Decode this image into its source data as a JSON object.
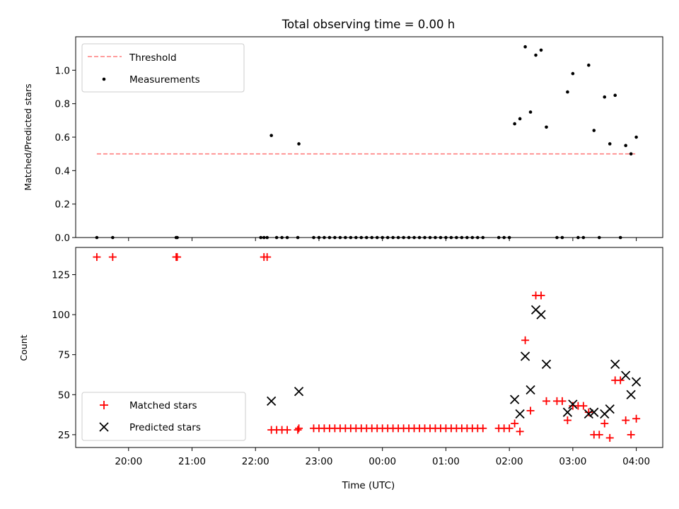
{
  "figure": {
    "title": "Total observing time = 0.00 h",
    "xlabel": "Time (UTC)"
  },
  "chart_data": [
    {
      "type": "scatter",
      "ylabel": "Matched/Predicted stars",
      "ylim": [
        0,
        1.2
      ],
      "yticks": [
        0.0,
        0.2,
        0.4,
        0.6,
        0.8,
        1.0
      ],
      "xlim": [
        "19:10",
        "04:25"
      ],
      "xticks": [
        "20:00",
        "21:00",
        "22:00",
        "23:00",
        "00:00",
        "01:00",
        "02:00",
        "03:00",
        "04:00"
      ],
      "legend_position": "upper-left",
      "threshold": {
        "name": "Threshold",
        "color": "#ff7f7f",
        "value": 0.5,
        "x_start": "19:30",
        "x_end": "03:59"
      },
      "series": [
        {
          "name": "Measurements",
          "color": "#000000",
          "marker": "dot",
          "points": [
            [
              "19:30",
              0
            ],
            [
              "19:45",
              0
            ],
            [
              "20:45",
              0
            ],
            [
              "20:46",
              0
            ],
            [
              "22:05",
              0
            ],
            [
              "22:08",
              0
            ],
            [
              "22:11",
              0
            ],
            [
              "22:15",
              0.61
            ],
            [
              "22:20",
              0
            ],
            [
              "22:25",
              0
            ],
            [
              "22:30",
              0
            ],
            [
              "22:40",
              0
            ],
            [
              "22:41",
              0.56
            ],
            [
              "22:55",
              0
            ],
            [
              "23:00",
              0
            ],
            [
              "23:05",
              0
            ],
            [
              "23:10",
              0
            ],
            [
              "23:15",
              0
            ],
            [
              "23:20",
              0
            ],
            [
              "23:25",
              0
            ],
            [
              "23:30",
              0
            ],
            [
              "23:35",
              0
            ],
            [
              "23:40",
              0
            ],
            [
              "23:45",
              0
            ],
            [
              "23:50",
              0
            ],
            [
              "23:55",
              0
            ],
            [
              "00:00",
              0
            ],
            [
              "00:05",
              0
            ],
            [
              "00:10",
              0
            ],
            [
              "00:15",
              0
            ],
            [
              "00:20",
              0
            ],
            [
              "00:25",
              0
            ],
            [
              "00:30",
              0
            ],
            [
              "00:35",
              0
            ],
            [
              "00:40",
              0
            ],
            [
              "00:45",
              0
            ],
            [
              "00:50",
              0
            ],
            [
              "00:55",
              0
            ],
            [
              "01:00",
              0
            ],
            [
              "01:05",
              0
            ],
            [
              "01:10",
              0
            ],
            [
              "01:15",
              0
            ],
            [
              "01:20",
              0
            ],
            [
              "01:25",
              0
            ],
            [
              "01:30",
              0
            ],
            [
              "01:35",
              0
            ],
            [
              "01:50",
              0
            ],
            [
              "01:55",
              0
            ],
            [
              "02:00",
              0
            ],
            [
              "02:05",
              0.68
            ],
            [
              "02:10",
              0.71
            ],
            [
              "02:15",
              1.14
            ],
            [
              "02:20",
              0.75
            ],
            [
              "02:25",
              1.09
            ],
            [
              "02:30",
              1.12
            ],
            [
              "02:35",
              0.66
            ],
            [
              "02:45",
              0
            ],
            [
              "02:50",
              0
            ],
            [
              "02:55",
              0.87
            ],
            [
              "03:00",
              0.98
            ],
            [
              "03:05",
              0
            ],
            [
              "03:10",
              0
            ],
            [
              "03:15",
              1.03
            ],
            [
              "03:20",
              0.64
            ],
            [
              "03:25",
              0
            ],
            [
              "03:30",
              0.84
            ],
            [
              "03:35",
              0.56
            ],
            [
              "03:40",
              0.85
            ],
            [
              "03:45",
              0
            ],
            [
              "03:50",
              0.55
            ],
            [
              "03:55",
              0.5
            ],
            [
              "04:00",
              0.6
            ]
          ]
        }
      ]
    },
    {
      "type": "scatter",
      "ylabel": "Count",
      "ylim": [
        17,
        142
      ],
      "yticks": [
        25,
        50,
        75,
        100,
        125
      ],
      "xlim": [
        "19:10",
        "04:25"
      ],
      "xticks": [
        "20:00",
        "21:00",
        "22:00",
        "23:00",
        "00:00",
        "01:00",
        "02:00",
        "03:00",
        "04:00"
      ],
      "legend_position": "lower-left",
      "series": [
        {
          "name": "Matched stars",
          "color": "#ff0000",
          "marker": "plus",
          "points": [
            [
              "19:30",
              136
            ],
            [
              "19:45",
              136
            ],
            [
              "20:45",
              136
            ],
            [
              "20:46",
              136
            ],
            [
              "22:08",
              136
            ],
            [
              "22:11",
              136
            ],
            [
              "22:15",
              28
            ],
            [
              "22:20",
              28
            ],
            [
              "22:25",
              28
            ],
            [
              "22:30",
              28
            ],
            [
              "22:40",
              28
            ],
            [
              "22:41",
              29
            ],
            [
              "22:55",
              29
            ],
            [
              "23:00",
              29
            ],
            [
              "23:05",
              29
            ],
            [
              "23:10",
              29
            ],
            [
              "23:15",
              29
            ],
            [
              "23:20",
              29
            ],
            [
              "23:25",
              29
            ],
            [
              "23:30",
              29
            ],
            [
              "23:35",
              29
            ],
            [
              "23:40",
              29
            ],
            [
              "23:45",
              29
            ],
            [
              "23:50",
              29
            ],
            [
              "23:55",
              29
            ],
            [
              "00:00",
              29
            ],
            [
              "00:05",
              29
            ],
            [
              "00:10",
              29
            ],
            [
              "00:15",
              29
            ],
            [
              "00:20",
              29
            ],
            [
              "00:25",
              29
            ],
            [
              "00:30",
              29
            ],
            [
              "00:35",
              29
            ],
            [
              "00:40",
              29
            ],
            [
              "00:45",
              29
            ],
            [
              "00:50",
              29
            ],
            [
              "00:55",
              29
            ],
            [
              "01:00",
              29
            ],
            [
              "01:05",
              29
            ],
            [
              "01:10",
              29
            ],
            [
              "01:15",
              29
            ],
            [
              "01:20",
              29
            ],
            [
              "01:25",
              29
            ],
            [
              "01:30",
              29
            ],
            [
              "01:35",
              29
            ],
            [
              "01:50",
              29
            ],
            [
              "01:55",
              29
            ],
            [
              "02:00",
              29
            ],
            [
              "02:05",
              32
            ],
            [
              "02:10",
              27
            ],
            [
              "02:15",
              84
            ],
            [
              "02:20",
              40
            ],
            [
              "02:25",
              112
            ],
            [
              "02:30",
              112
            ],
            [
              "02:35",
              46
            ],
            [
              "02:45",
              46
            ],
            [
              "02:50",
              46
            ],
            [
              "02:55",
              34
            ],
            [
              "03:00",
              43
            ],
            [
              "03:05",
              43
            ],
            [
              "03:10",
              43
            ],
            [
              "03:15",
              39
            ],
            [
              "03:20",
              25
            ],
            [
              "03:25",
              25
            ],
            [
              "03:30",
              32
            ],
            [
              "03:35",
              23
            ],
            [
              "03:40",
              59
            ],
            [
              "03:45",
              59
            ],
            [
              "03:50",
              34
            ],
            [
              "03:55",
              25
            ],
            [
              "04:00",
              35
            ]
          ]
        },
        {
          "name": "Predicted stars",
          "color": "#000000",
          "marker": "x",
          "points": [
            [
              "22:15",
              46
            ],
            [
              "22:41",
              52
            ],
            [
              "02:05",
              47
            ],
            [
              "02:10",
              38
            ],
            [
              "02:15",
              74
            ],
            [
              "02:20",
              53
            ],
            [
              "02:25",
              103
            ],
            [
              "02:30",
              100
            ],
            [
              "02:35",
              69
            ],
            [
              "02:55",
              39
            ],
            [
              "03:00",
              44
            ],
            [
              "03:15",
              38
            ],
            [
              "03:20",
              39
            ],
            [
              "03:30",
              38
            ],
            [
              "03:35",
              41
            ],
            [
              "03:40",
              69
            ],
            [
              "03:50",
              62
            ],
            [
              "03:55",
              50
            ],
            [
              "04:00",
              58
            ]
          ]
        }
      ]
    }
  ]
}
